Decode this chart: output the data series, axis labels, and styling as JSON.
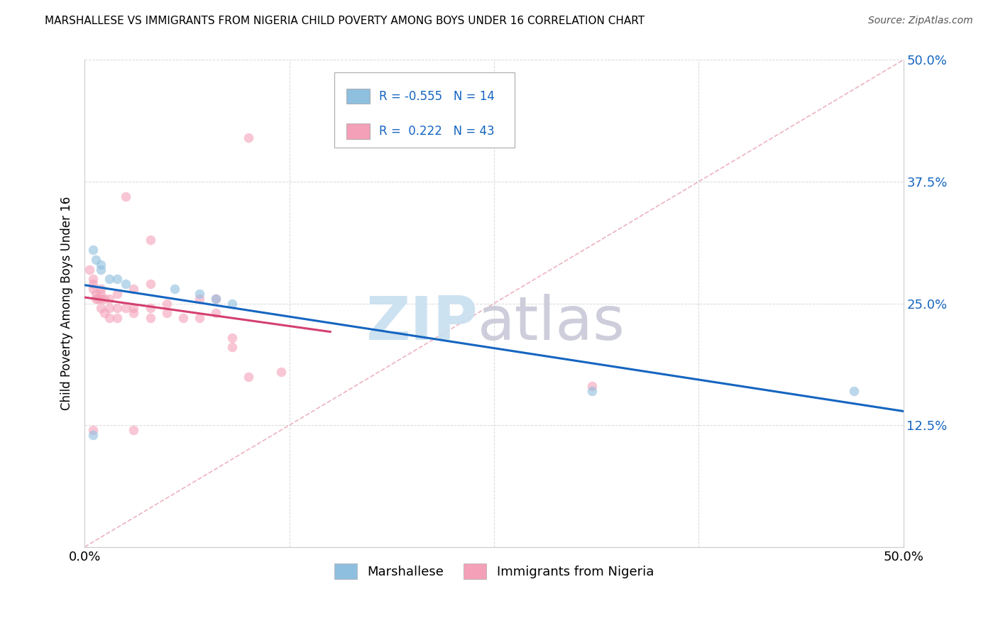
{
  "title": "MARSHALLESE VS IMMIGRANTS FROM NIGERIA CHILD POVERTY AMONG BOYS UNDER 16 CORRELATION CHART",
  "source": "Source: ZipAtlas.com",
  "ylabel": "Child Poverty Among Boys Under 16",
  "xlim": [
    0.0,
    0.5
  ],
  "ylim": [
    0.0,
    0.5
  ],
  "blue_color": "#8fbfdf",
  "pink_color": "#f4a0b8",
  "trendline_blue": "#1565c0",
  "trendline_pink": "#d44070",
  "diag_color": "#e8a0b0",
  "watermark_zip_color": "#c8dff0",
  "watermark_atlas_color": "#c8c8d8",
  "blue_scatter": [
    [
      0.005,
      0.305
    ],
    [
      0.007,
      0.295
    ],
    [
      0.01,
      0.29
    ],
    [
      0.01,
      0.285
    ],
    [
      0.015,
      0.275
    ],
    [
      0.02,
      0.275
    ],
    [
      0.025,
      0.27
    ],
    [
      0.055,
      0.265
    ],
    [
      0.07,
      0.26
    ],
    [
      0.08,
      0.255
    ],
    [
      0.09,
      0.25
    ],
    [
      0.31,
      0.16
    ],
    [
      0.47,
      0.16
    ],
    [
      0.005,
      0.115
    ]
  ],
  "pink_scatter": [
    [
      0.003,
      0.285
    ],
    [
      0.005,
      0.275
    ],
    [
      0.005,
      0.27
    ],
    [
      0.005,
      0.265
    ],
    [
      0.007,
      0.26
    ],
    [
      0.007,
      0.255
    ],
    [
      0.008,
      0.255
    ],
    [
      0.01,
      0.245
    ],
    [
      0.01,
      0.255
    ],
    [
      0.01,
      0.26
    ],
    [
      0.01,
      0.265
    ],
    [
      0.012,
      0.24
    ],
    [
      0.012,
      0.255
    ],
    [
      0.015,
      0.235
    ],
    [
      0.015,
      0.245
    ],
    [
      0.015,
      0.255
    ],
    [
      0.02,
      0.235
    ],
    [
      0.02,
      0.245
    ],
    [
      0.02,
      0.26
    ],
    [
      0.025,
      0.245
    ],
    [
      0.025,
      0.36
    ],
    [
      0.03,
      0.24
    ],
    [
      0.03,
      0.245
    ],
    [
      0.03,
      0.265
    ],
    [
      0.04,
      0.235
    ],
    [
      0.04,
      0.245
    ],
    [
      0.04,
      0.27
    ],
    [
      0.04,
      0.315
    ],
    [
      0.05,
      0.24
    ],
    [
      0.05,
      0.25
    ],
    [
      0.06,
      0.235
    ],
    [
      0.07,
      0.235
    ],
    [
      0.07,
      0.255
    ],
    [
      0.08,
      0.24
    ],
    [
      0.08,
      0.255
    ],
    [
      0.09,
      0.205
    ],
    [
      0.09,
      0.215
    ],
    [
      0.1,
      0.175
    ],
    [
      0.1,
      0.42
    ],
    [
      0.12,
      0.18
    ],
    [
      0.31,
      0.165
    ],
    [
      0.005,
      0.12
    ],
    [
      0.03,
      0.12
    ]
  ],
  "grid_color": "#d0d0d0",
  "background_color": "#ffffff",
  "marker_size": 95,
  "marker_alpha": 0.6
}
